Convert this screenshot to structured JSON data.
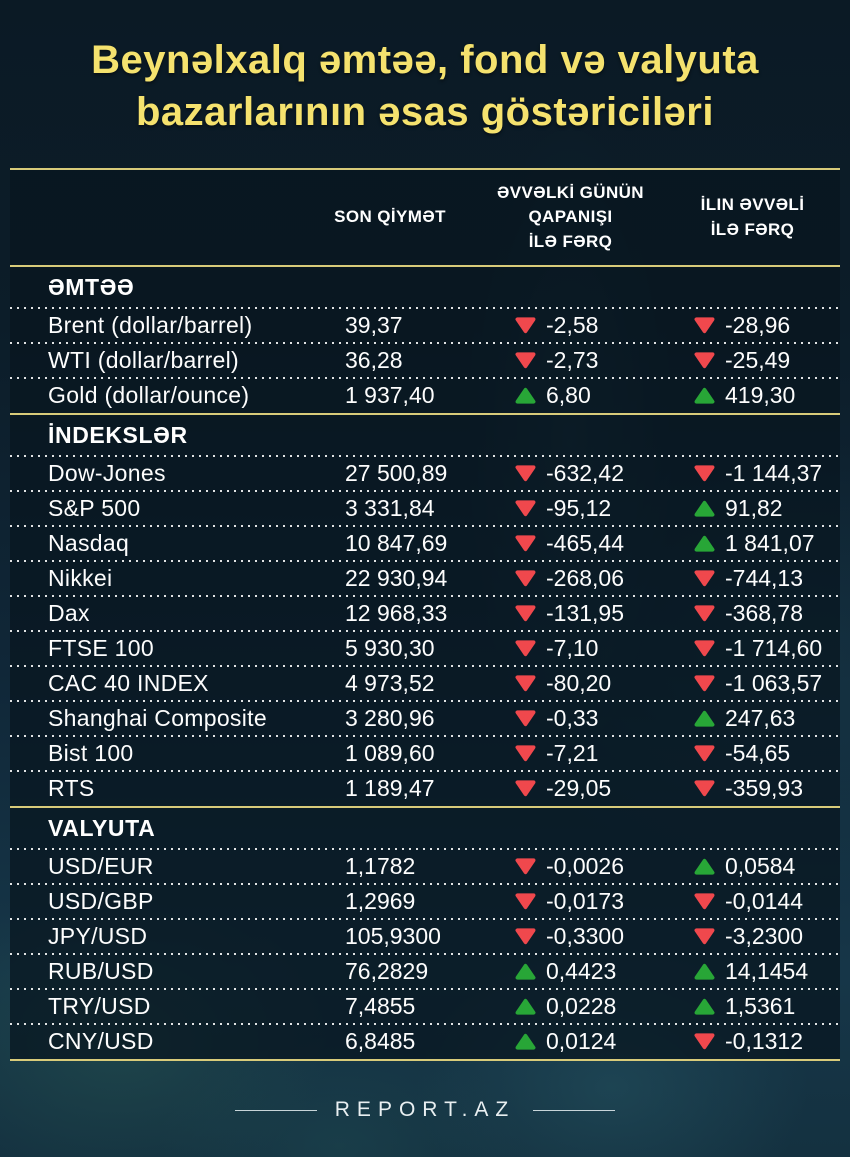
{
  "page": {
    "title_line1": "Beynəlxalq əmtəə, fond və valyuta",
    "title_line2": "bazarlarının əsas göstəriciləri",
    "footer_brand": "REPORT.AZ"
  },
  "colors": {
    "accent_yellow": "#f5e26e",
    "divider_gold": "#d8cb7a",
    "up_green": "#28a637",
    "down_red": "#f0484d",
    "table_bg": "#0d1f2c",
    "text": "#ffffff"
  },
  "chart_data": {
    "type": "table",
    "title": "Beynəlxalq əmtəə, fond və valyuta bazarlarının əsas göstəriciləri",
    "header": {
      "last_price_lines": {
        "0": "SON QİYMƏT"
      },
      "prev_close_diff_lines": {
        "0": "ƏVVƏLKİ GÜNÜN",
        "1": "QAPANIŞI",
        "2": "İLƏ FƏRQ"
      },
      "ytd_diff_lines": {
        "0": "İLIN ƏVVƏLİ",
        "1": "İLƏ FƏRQ"
      }
    },
    "sections": [
      {
        "name": "ƏMTƏƏ",
        "rows": [
          {
            "label": "Brent (dollar/barrel)",
            "price": "39,37",
            "prev_diff": {
              "direction": "down",
              "value": "-2,58"
            },
            "ytd_diff": {
              "direction": "down",
              "value": "-28,96"
            }
          },
          {
            "label": "WTI (dollar/barrel)",
            "price": "36,28",
            "prev_diff": {
              "direction": "down",
              "value": "-2,73"
            },
            "ytd_diff": {
              "direction": "down",
              "value": "-25,49"
            }
          },
          {
            "label": "Gold (dollar/ounce)",
            "price": "1 937,40",
            "prev_diff": {
              "direction": "up",
              "value": "6,80"
            },
            "ytd_diff": {
              "direction": "up",
              "value": "419,30"
            }
          }
        ]
      },
      {
        "name": "İNDEKSLƏR",
        "rows": [
          {
            "label": "Dow-Jones",
            "price": "27 500,89",
            "prev_diff": {
              "direction": "down",
              "value": "-632,42"
            },
            "ytd_diff": {
              "direction": "down",
              "value": "-1 144,37"
            }
          },
          {
            "label": "S&P 500",
            "price": "3 331,84",
            "prev_diff": {
              "direction": "down",
              "value": "-95,12"
            },
            "ytd_diff": {
              "direction": "up",
              "value": "91,82"
            }
          },
          {
            "label": "Nasdaq",
            "price": "10 847,69",
            "prev_diff": {
              "direction": "down",
              "value": "-465,44"
            },
            "ytd_diff": {
              "direction": "up",
              "value": "1 841,07"
            }
          },
          {
            "label": "Nikkei",
            "price": "22 930,94",
            "prev_diff": {
              "direction": "down",
              "value": "-268,06"
            },
            "ytd_diff": {
              "direction": "down",
              "value": "-744,13"
            }
          },
          {
            "label": "Dax",
            "price": "12 968,33",
            "prev_diff": {
              "direction": "down",
              "value": "-131,95"
            },
            "ytd_diff": {
              "direction": "down",
              "value": "-368,78"
            }
          },
          {
            "label": "FTSE 100",
            "price": "5 930,30",
            "prev_diff": {
              "direction": "down",
              "value": "-7,10"
            },
            "ytd_diff": {
              "direction": "down",
              "value": "-1 714,60"
            }
          },
          {
            "label": "CAC 40 INDEX",
            "price": "4 973,52",
            "prev_diff": {
              "direction": "down",
              "value": "-80,20"
            },
            "ytd_diff": {
              "direction": "down",
              "value": "-1 063,57"
            }
          },
          {
            "label": "Shanghai Composite",
            "price": "3 280,96",
            "prev_diff": {
              "direction": "down",
              "value": "-0,33"
            },
            "ytd_diff": {
              "direction": "up",
              "value": "247,63"
            }
          },
          {
            "label": "Bist 100",
            "price": "1 089,60",
            "prev_diff": {
              "direction": "down",
              "value": "-7,21"
            },
            "ytd_diff": {
              "direction": "down",
              "value": "-54,65"
            }
          },
          {
            "label": "RTS",
            "price": "1 189,47",
            "prev_diff": {
              "direction": "down",
              "value": "-29,05"
            },
            "ytd_diff": {
              "direction": "down",
              "value": "-359,93"
            }
          }
        ]
      },
      {
        "name": "VALYUTA",
        "rows": [
          {
            "label": "USD/EUR",
            "price": "1,1782",
            "prev_diff": {
              "direction": "down",
              "value": "-0,0026"
            },
            "ytd_diff": {
              "direction": "up",
              "value": "0,0584"
            }
          },
          {
            "label": "USD/GBP",
            "price": "1,2969",
            "prev_diff": {
              "direction": "down",
              "value": "-0,0173"
            },
            "ytd_diff": {
              "direction": "down",
              "value": "-0,0144"
            }
          },
          {
            "label": "JPY/USD",
            "price": "105,9300",
            "prev_diff": {
              "direction": "down",
              "value": "-0,3300"
            },
            "ytd_diff": {
              "direction": "down",
              "value": "-3,2300"
            }
          },
          {
            "label": "RUB/USD",
            "price": "76,2829",
            "prev_diff": {
              "direction": "up",
              "value": "0,4423"
            },
            "ytd_diff": {
              "direction": "up",
              "value": "14,1454"
            }
          },
          {
            "label": "TRY/USD",
            "price": "7,4855",
            "prev_diff": {
              "direction": "up",
              "value": "0,0228"
            },
            "ytd_diff": {
              "direction": "up",
              "value": "1,5361"
            }
          },
          {
            "label": "CNY/USD",
            "price": "6,8485",
            "prev_diff": {
              "direction": "up",
              "value": "0,0124"
            },
            "ytd_diff": {
              "direction": "down",
              "value": "-0,1312"
            }
          }
        ]
      }
    ]
  }
}
